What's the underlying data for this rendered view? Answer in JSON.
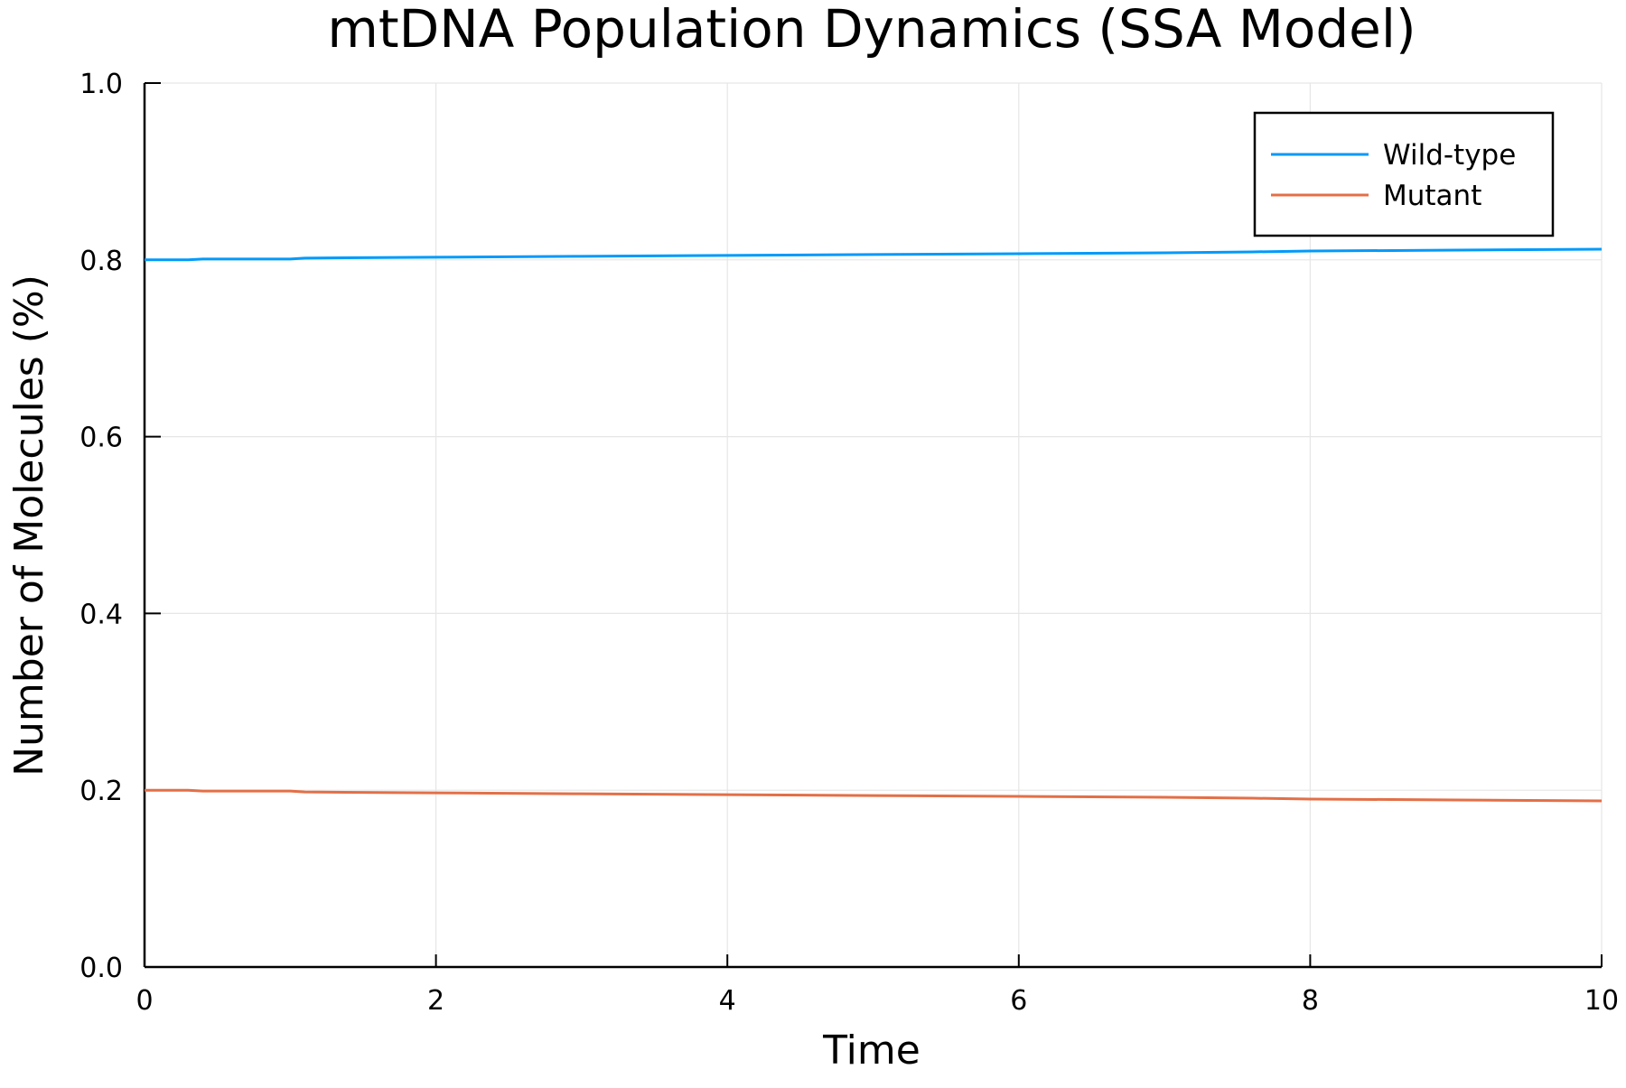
{
  "chart_data": {
    "type": "line",
    "title": "mtDNA Population Dynamics (SSA Model)",
    "xlabel": "Time",
    "ylabel": "Number of Molecules (%)",
    "xlim": [
      0,
      10
    ],
    "ylim": [
      0.0,
      1.0
    ],
    "xticks": [
      0,
      2,
      4,
      6,
      8,
      10
    ],
    "xtick_labels": [
      "0",
      "2",
      "4",
      "6",
      "8",
      "10"
    ],
    "yticks": [
      0.0,
      0.2,
      0.4,
      0.6,
      0.8,
      1.0
    ],
    "ytick_labels": [
      "0.0",
      "0.2",
      "0.4",
      "0.6",
      "0.8",
      "1.0"
    ],
    "grid": true,
    "legend_position": "top-right",
    "series": [
      {
        "name": "Wild-type",
        "color": "#009AFA",
        "x": [
          0,
          0.3,
          0.4,
          1.0,
          1.1,
          2.0,
          3.0,
          4.0,
          5.0,
          6.0,
          7.0,
          7.6,
          8.0,
          9.0,
          10.0
        ],
        "y": [
          0.8,
          0.8,
          0.801,
          0.801,
          0.802,
          0.803,
          0.804,
          0.805,
          0.806,
          0.807,
          0.808,
          0.809,
          0.81,
          0.811,
          0.812
        ]
      },
      {
        "name": "Mutant",
        "color": "#E36F47",
        "x": [
          0,
          0.3,
          0.4,
          1.0,
          1.1,
          2.0,
          3.0,
          4.0,
          5.0,
          6.0,
          7.0,
          7.6,
          8.0,
          9.0,
          10.0
        ],
        "y": [
          0.2,
          0.2,
          0.199,
          0.199,
          0.198,
          0.197,
          0.196,
          0.195,
          0.194,
          0.193,
          0.192,
          0.191,
          0.19,
          0.189,
          0.188
        ]
      }
    ]
  }
}
